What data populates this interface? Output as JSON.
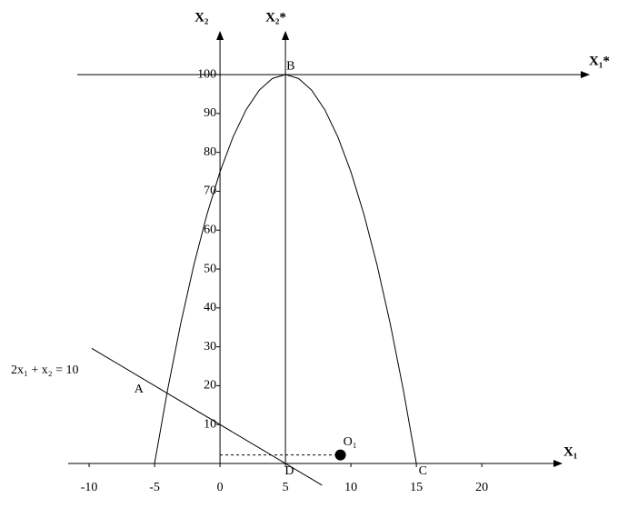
{
  "chart_data": {
    "type": "line",
    "x_label": "X₁",
    "y_label": "X₂",
    "x2_label": "X₁*",
    "y2_label": "X₂*",
    "equation": "2x₁ + x₂ = 10",
    "xlim": [
      -11.6,
      26.1
    ],
    "ylim": [
      0,
      111
    ],
    "xticks": [
      -10,
      -5,
      0,
      5,
      10,
      15,
      20
    ],
    "yticks": [
      10,
      20,
      30,
      40,
      50,
      60,
      70,
      80,
      90,
      100
    ],
    "shifted_origin": [
      5,
      100
    ],
    "series": [
      {
        "color": "#000000",
        "x": [
          -5,
          -4,
          -3,
          -2,
          -1,
          0,
          1,
          2,
          3,
          4,
          5,
          6,
          7,
          8,
          9,
          10,
          11,
          12,
          13,
          14,
          15
        ],
        "values": [
          0,
          19,
          36,
          51,
          64,
          75,
          84,
          91,
          96,
          99,
          100,
          99,
          96,
          91,
          84,
          75,
          64,
          51,
          36,
          19,
          0
        ]
      },
      {
        "color": "#000000",
        "x": [
          -9.8,
          7.8
        ],
        "values": [
          29.6,
          -5.6
        ]
      }
    ],
    "point": {
      "label": "O₁",
      "x": 9.2,
      "y": 2.2
    },
    "annotations": [
      {
        "text": "A",
        "x": -6.2,
        "y": 19
      },
      {
        "text": "B",
        "x": 5.4,
        "y": 102
      },
      {
        "text": "C",
        "x": 15.5,
        "y": -2
      },
      {
        "text": "D",
        "x": 5.3,
        "y": -2
      }
    ]
  }
}
